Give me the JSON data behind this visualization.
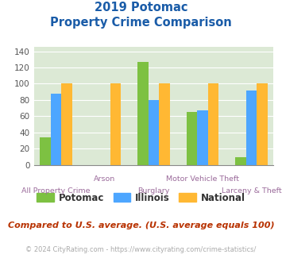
{
  "title_line1": "2019 Potomac",
  "title_line2": "Property Crime Comparison",
  "categories": [
    "All Property Crime",
    "Arson",
    "Burglary",
    "Motor Vehicle Theft",
    "Larceny & Theft"
  ],
  "potomac": [
    34,
    0,
    127,
    65,
    10
  ],
  "illinois": [
    88,
    0,
    80,
    67,
    92
  ],
  "national": [
    100,
    100,
    100,
    100,
    100
  ],
  "potomac_color": "#7dc142",
  "illinois_color": "#4da6ff",
  "national_color": "#ffb833",
  "ylim": [
    0,
    145
  ],
  "yticks": [
    0,
    20,
    40,
    60,
    80,
    100,
    120,
    140
  ],
  "bg_color": "#dce9d5",
  "title_color": "#1a5ca8",
  "xlabel_color": "#9b6b9b",
  "footer_text": "Compared to U.S. average. (U.S. average equals 100)",
  "footer_color": "#b83200",
  "copyright_text": "© 2024 CityRating.com - https://www.cityrating.com/crime-statistics/",
  "copyright_color": "#aaaaaa",
  "legend_labels": [
    "Potomac",
    "Illinois",
    "National"
  ],
  "bar_width": 0.22,
  "group_positions": [
    0,
    1,
    2,
    3,
    4
  ],
  "upper_row_indices": [
    1,
    3
  ],
  "lower_row_indices": [
    0,
    2,
    4
  ]
}
